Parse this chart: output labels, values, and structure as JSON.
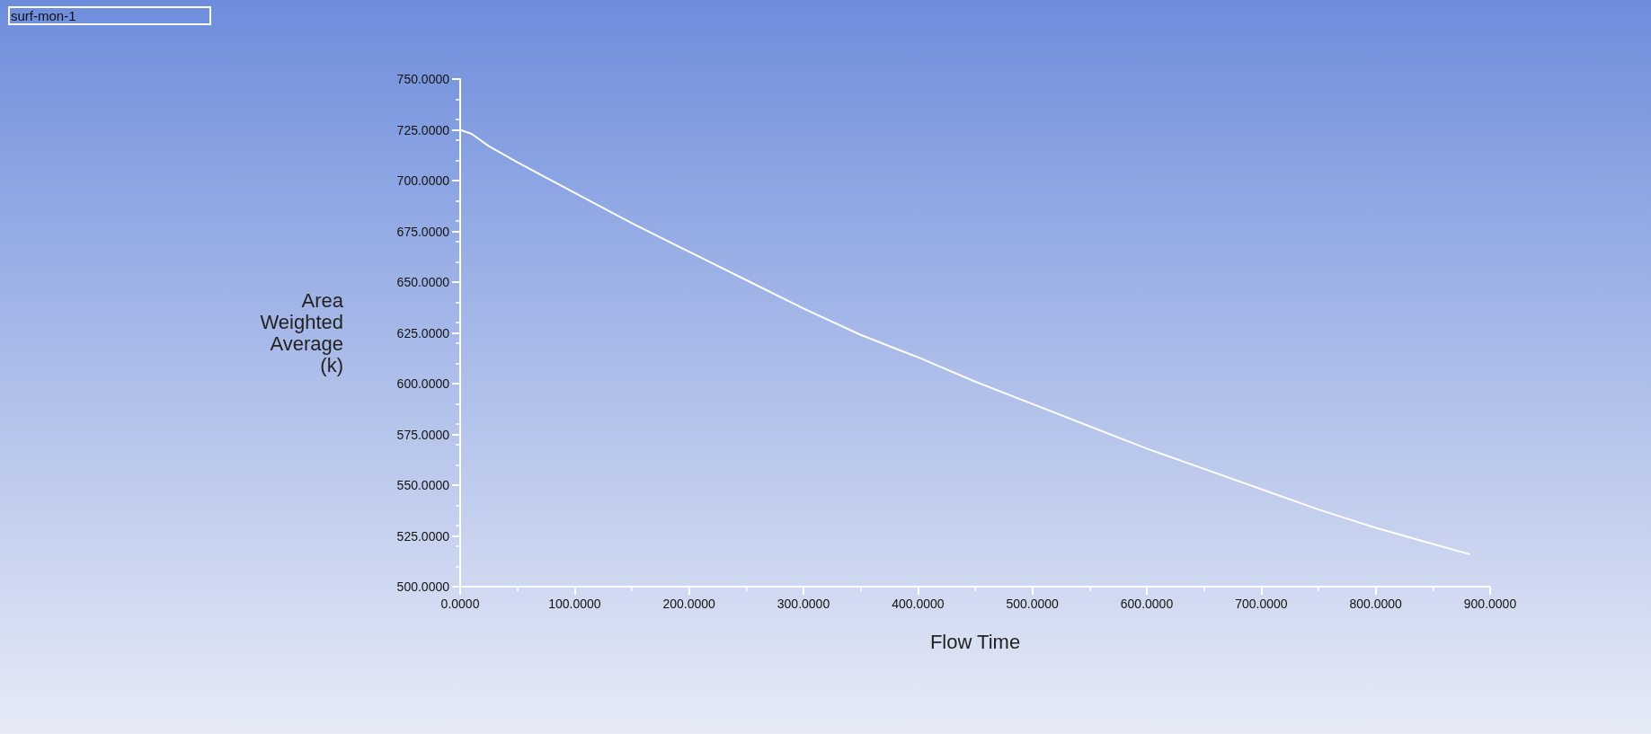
{
  "chart_data": {
    "type": "line",
    "title": "surf-mon-1",
    "xlabel": "Flow Time",
    "ylabel": "Area\nWeighted\nAverage\n(k)",
    "xlim": [
      0,
      900
    ],
    "ylim": [
      500,
      750
    ],
    "xticks": [
      {
        "value": 0,
        "label": "0.0000"
      },
      {
        "value": 100,
        "label": "100.0000"
      },
      {
        "value": 200,
        "label": "200.0000"
      },
      {
        "value": 300,
        "label": "300.0000"
      },
      {
        "value": 400,
        "label": "400.0000"
      },
      {
        "value": 500,
        "label": "500.0000"
      },
      {
        "value": 600,
        "label": "600.0000"
      },
      {
        "value": 700,
        "label": "700.0000"
      },
      {
        "value": 800,
        "label": "800.0000"
      },
      {
        "value": 900,
        "label": "900.0000"
      }
    ],
    "yticks": [
      {
        "value": 500,
        "label": "500.0000"
      },
      {
        "value": 525,
        "label": "525.0000"
      },
      {
        "value": 550,
        "label": "550.0000"
      },
      {
        "value": 575,
        "label": "575.0000"
      },
      {
        "value": 600,
        "label": "600.0000"
      },
      {
        "value": 625,
        "label": "625.0000"
      },
      {
        "value": 650,
        "label": "650.0000"
      },
      {
        "value": 675,
        "label": "675.0000"
      },
      {
        "value": 700,
        "label": "700.0000"
      },
      {
        "value": 725,
        "label": "725.0000"
      },
      {
        "value": 750,
        "label": "750.0000"
      }
    ],
    "series": [
      {
        "color": "#ffffff",
        "x": [
          0,
          5,
          10,
          25,
          50,
          100,
          150,
          200,
          250,
          300,
          350,
          400,
          450,
          500,
          550,
          600,
          650,
          700,
          750,
          800,
          850,
          882
        ],
        "values": [
          725,
          724,
          723,
          717,
          709,
          694,
          679,
          665,
          651,
          637,
          624,
          613,
          601,
          590,
          579,
          568,
          558,
          548,
          538,
          529,
          521,
          516
        ]
      }
    ],
    "grid": false,
    "marker": "none",
    "line_style": "solid"
  }
}
